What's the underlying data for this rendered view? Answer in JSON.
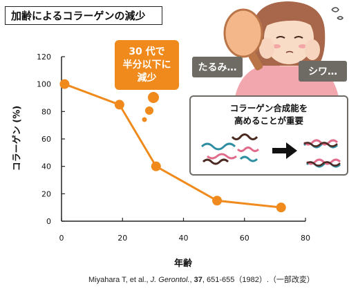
{
  "title": "加齢によるコラーゲンの減少",
  "callout": {
    "line1": "30 代で",
    "line2": "半分以下に",
    "line3": "減少"
  },
  "tags": {
    "left": "たるみ…",
    "right": "シワ…"
  },
  "info": {
    "line1": "コラーゲン合成能を",
    "line2": "高めることが重要"
  },
  "citation": "Miyahara T, et al., J. Gerontol., 37, 651-655（1982）.（一部改変）",
  "colors": {
    "accent": "#f08a1c",
    "tag_gray": "#6e6a64",
    "axis": "#222222"
  },
  "chart_data": {
    "type": "line",
    "xlabel": "年齢",
    "ylabel": "コラーゲン (%)",
    "xlim": [
      0,
      80
    ],
    "ylim": [
      0,
      120
    ],
    "x_ticks": [
      0,
      20,
      40,
      60,
      80
    ],
    "y_ticks": [
      0,
      20,
      40,
      60,
      80,
      100,
      120
    ],
    "series": [
      {
        "x": [
          1,
          19,
          31,
          51,
          72
        ],
        "y": [
          100,
          85,
          40,
          15,
          10
        ]
      }
    ],
    "grid": false
  }
}
